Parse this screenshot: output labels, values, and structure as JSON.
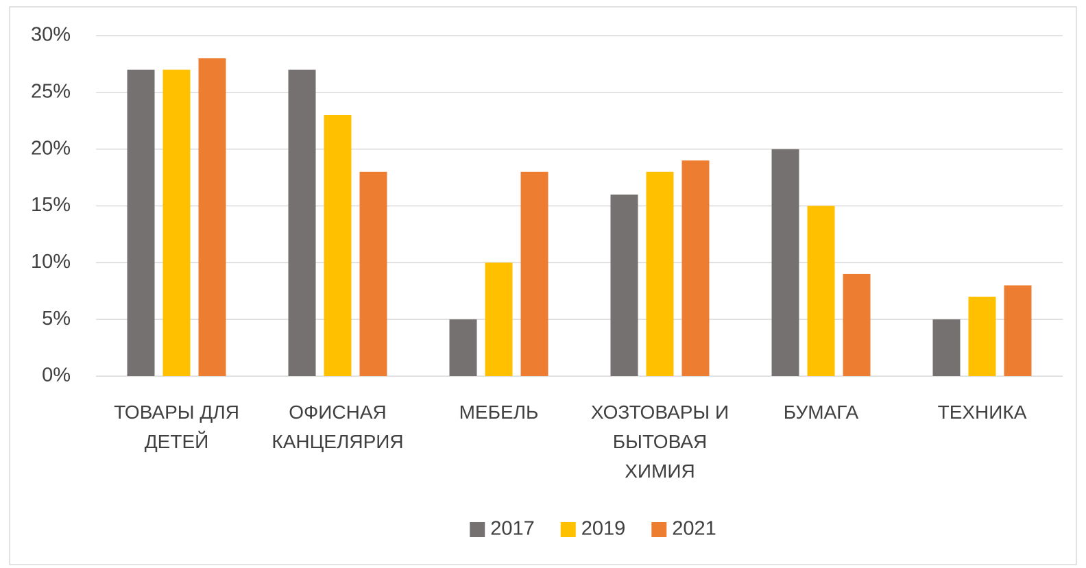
{
  "chart_data": {
    "type": "bar",
    "categories": [
      "ТОВАРЫ ДЛЯ ДЕТЕЙ",
      "ОФИСНАЯ КАНЦЕЛЯРИЯ",
      "МЕБЕЛЬ",
      "ХОЗТОВАРЫ И БЫТОВАЯ ХИМИЯ",
      "БУМАГА",
      "ТЕХНИКА"
    ],
    "series": [
      {
        "name": "2017",
        "color": "#767171",
        "values": [
          27,
          27,
          5,
          16,
          20,
          5
        ]
      },
      {
        "name": "2019",
        "color": "#ffc000",
        "values": [
          27,
          23,
          10,
          18,
          15,
          7
        ]
      },
      {
        "name": "2021",
        "color": "#ed7d31",
        "values": [
          28,
          18,
          18,
          19,
          9,
          8
        ]
      }
    ],
    "ylim": [
      0,
      30
    ],
    "yticks": [
      {
        "value": 0,
        "label": "0%"
      },
      {
        "value": 5,
        "label": "5%"
      },
      {
        "value": 10,
        "label": "10%"
      },
      {
        "value": 15,
        "label": "15%"
      },
      {
        "value": 20,
        "label": "20%"
      },
      {
        "value": 25,
        "label": "25%"
      },
      {
        "value": 30,
        "label": "30%"
      }
    ],
    "grid": true,
    "legend": "bottom"
  }
}
